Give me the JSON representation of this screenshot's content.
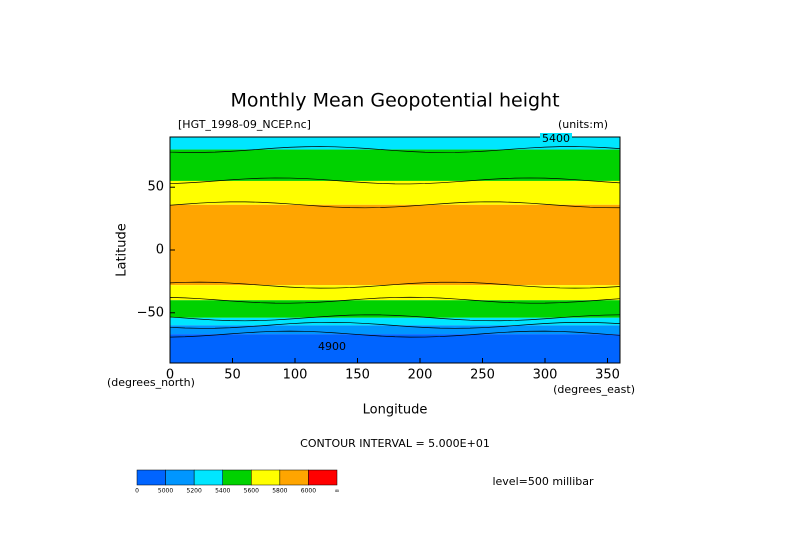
{
  "chart_data": {
    "type": "contour-map",
    "title": "Monthly Mean Geopotential height",
    "file_label": "[HGT_1998-09_NCEP.nc]",
    "units_label": "(units:m)",
    "x_label": "Longitude",
    "y_label": "Latitude",
    "x_unit_label": "(degrees_east)",
    "y_unit_label": "(degrees_north)",
    "xlim": [
      0,
      360
    ],
    "ylim": [
      -90,
      90
    ],
    "xticks": [
      0,
      50,
      100,
      150,
      200,
      250,
      300,
      350
    ],
    "yticks": [
      {
        "value": -50,
        "label": "−50"
      },
      0,
      50
    ],
    "contour_interval": "CONTOUR INTERVAL = 5.000E+01",
    "level": "level=500 millibar",
    "contour_labels": [
      "5400",
      "4900"
    ],
    "bands": [
      {
        "color": "#00e6ff",
        "lat": [
          80,
          90
        ]
      },
      {
        "color": "#00d200",
        "lat": [
          55,
          80
        ]
      },
      {
        "color": "#ffff00",
        "lat": [
          36,
          55
        ]
      },
      {
        "color": "#ffa500",
        "lat": [
          -28,
          36
        ]
      },
      {
        "color": "#ffff00",
        "lat": [
          -40,
          -28
        ]
      },
      {
        "color": "#00d200",
        "lat": [
          -54,
          -40
        ]
      },
      {
        "color": "#00e6ff",
        "lat": [
          -60,
          -54
        ]
      },
      {
        "color": "#0096ff",
        "lat": [
          -67,
          -60
        ]
      },
      {
        "color": "#0064ff",
        "lat": [
          -90,
          -67
        ]
      }
    ],
    "colorbar": {
      "colors": [
        "#0064ff",
        "#0096ff",
        "#00e6ff",
        "#00d200",
        "#ffff00",
        "#ffa500",
        "#ff0000"
      ],
      "labels": [
        "0",
        "5000",
        "5200",
        "5400",
        "5600",
        "5800",
        "6000",
        "∞"
      ]
    }
  }
}
